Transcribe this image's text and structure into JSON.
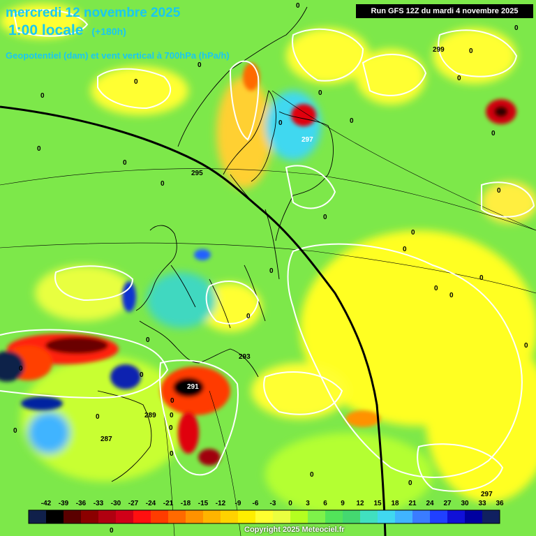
{
  "header": {
    "date_line": "mercredi 12 novembre 2025",
    "time_line": "1:00 locale",
    "lead_time": "(+180h)",
    "subtitle": "Geopotentiel (dam) et vent vertical à 700hPa (hPa/h)",
    "run_info": "Run GFS 12Z du mardi 4 novembre 2025",
    "copyright": "Copyright 2025 Meteociel.fr"
  },
  "legend": {
    "ticks": [
      "-42",
      "-39",
      "-36",
      "-33",
      "-30",
      "-27",
      "-24",
      "-21",
      "-18",
      "-15",
      "-12",
      "-9",
      "-6",
      "-3",
      "0",
      "3",
      "6",
      "9",
      "12",
      "15",
      "18",
      "21",
      "24",
      "27",
      "30",
      "33",
      "36"
    ],
    "colors": [
      "#10204a",
      "#000000",
      "#5a0000",
      "#8b0000",
      "#b00010",
      "#d00018",
      "#ff1010",
      "#ff3c00",
      "#ff6a00",
      "#ff9200",
      "#ffb400",
      "#ffd200",
      "#ffee00",
      "#ffff30",
      "#eaff40",
      "#b4ff20",
      "#7ef24a",
      "#52e45a",
      "#44d870",
      "#40e0c0",
      "#40d8f0",
      "#40b4ff",
      "#3a7cff",
      "#2040ff",
      "#1010d8",
      "#0000a0",
      "#102060"
    ]
  },
  "map_labels": {
    "geopotential": [
      "299",
      "297",
      "295",
      "293",
      "291",
      "289",
      "287",
      "297"
    ],
    "zero_labels": [
      "0",
      "0",
      "0",
      "0",
      "0",
      "0",
      "0",
      "0",
      "0",
      "0",
      "0",
      "0",
      "0",
      "0",
      "0",
      "0",
      "0",
      "0",
      "0",
      "0",
      "0",
      "0",
      "0",
      "0",
      "0",
      "0",
      "0",
      "0",
      "0",
      "0",
      "0",
      "0",
      "0",
      "0",
      "0",
      "0"
    ]
  }
}
